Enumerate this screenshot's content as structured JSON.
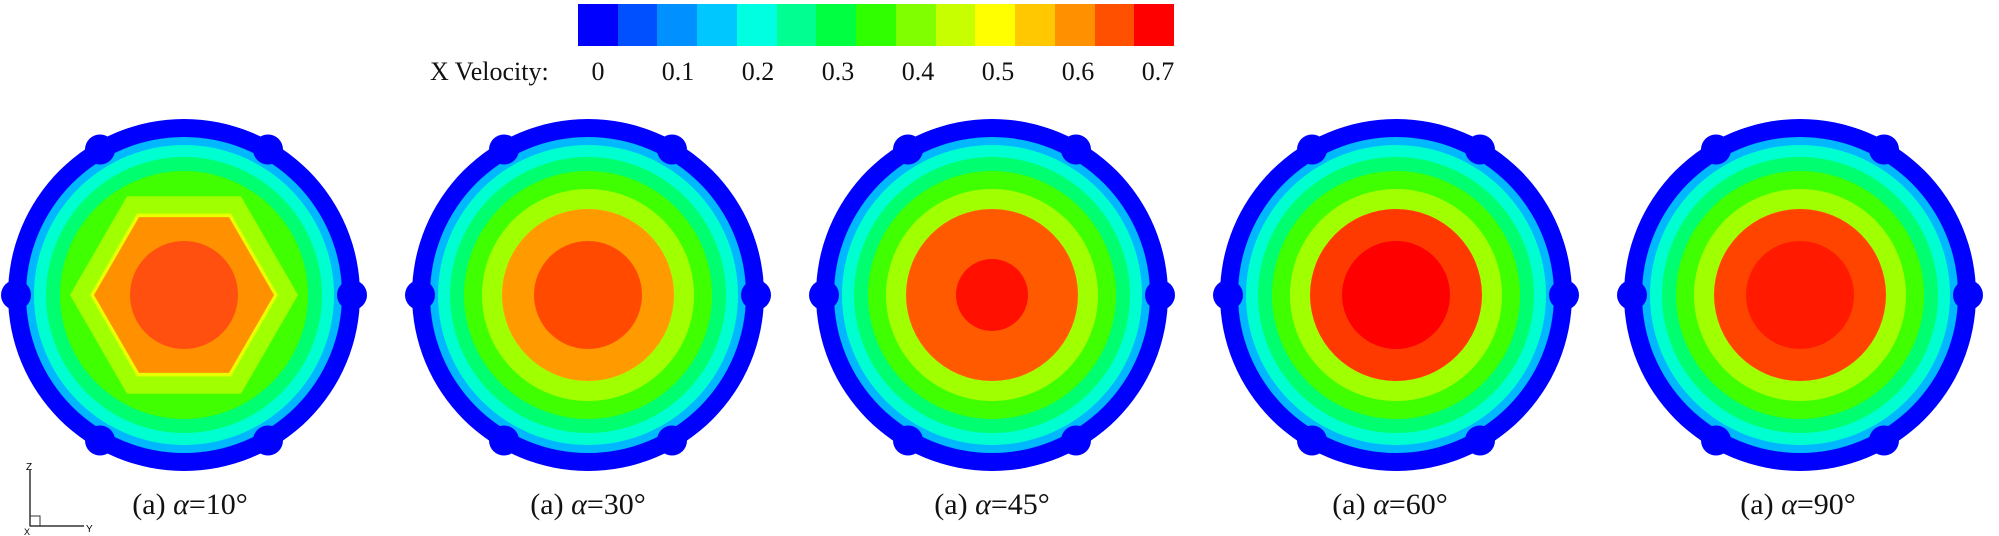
{
  "colorbar": {
    "label": "X Velocity:",
    "ticks": [
      "0",
      "0.1",
      "0.2",
      "0.3",
      "0.4",
      "0.5",
      "0.6",
      "0.7"
    ],
    "colors": [
      "#0000ff",
      "#0050ff",
      "#0090ff",
      "#00c8ff",
      "#00ffe0",
      "#00ff90",
      "#00ff40",
      "#30ff00",
      "#80ff00",
      "#c8ff00",
      "#ffff00",
      "#ffc800",
      "#ff9000",
      "#ff5000",
      "#ff0000"
    ]
  },
  "plots": [
    {
      "label": "(a)",
      "symbol": "α",
      "angle": "=10°",
      "core": "#ff5010",
      "ring1": "#ff9000",
      "shape": "hex"
    },
    {
      "label": "(a)",
      "symbol": "α",
      "angle": "=30°",
      "core": "#ff4a00",
      "ring1": "#ff9a00",
      "shape": "round"
    },
    {
      "label": "(a)",
      "symbol": "α",
      "angle": "=45°",
      "core": "#ff1000",
      "ring1": "#ff5a00",
      "shape": "round"
    },
    {
      "label": "(a)",
      "symbol": "α",
      "angle": "=60°",
      "core": "#ff0000",
      "ring1": "#ff3a00",
      "shape": "round"
    },
    {
      "label": "(a)",
      "symbol": "α",
      "angle": "=90°",
      "core": "#ff1a00",
      "ring1": "#ff4400",
      "shape": "round"
    }
  ],
  "axes": {
    "z": "Z",
    "y": "Y",
    "x": "X"
  }
}
